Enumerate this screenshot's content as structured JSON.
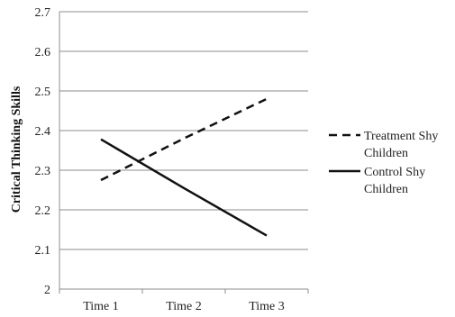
{
  "chart_data": {
    "type": "line",
    "title": "",
    "xlabel": "",
    "ylabel": "Critical Thinking Skills",
    "categories": [
      "Time 1",
      "Time 2",
      "Time 3"
    ],
    "ylim": [
      2,
      2.7
    ],
    "yticks": [
      "2",
      "2.1",
      "2.2",
      "2.3",
      "2.4",
      "2.5",
      "2.6",
      "2.7"
    ],
    "grid": true,
    "legend_position": "right",
    "series": [
      {
        "name": "Treatment Shy Children",
        "legend_lines": [
          "Treatment Shy",
          "Children"
        ],
        "values": [
          2.275,
          2.38,
          2.48
        ],
        "style": "dashed",
        "color": "#111111"
      },
      {
        "name": "Control Shy Children",
        "legend_lines": [
          "Control Shy",
          "Children"
        ],
        "values": [
          2.378,
          2.255,
          2.135
        ],
        "style": "solid",
        "color": "#111111"
      }
    ]
  }
}
